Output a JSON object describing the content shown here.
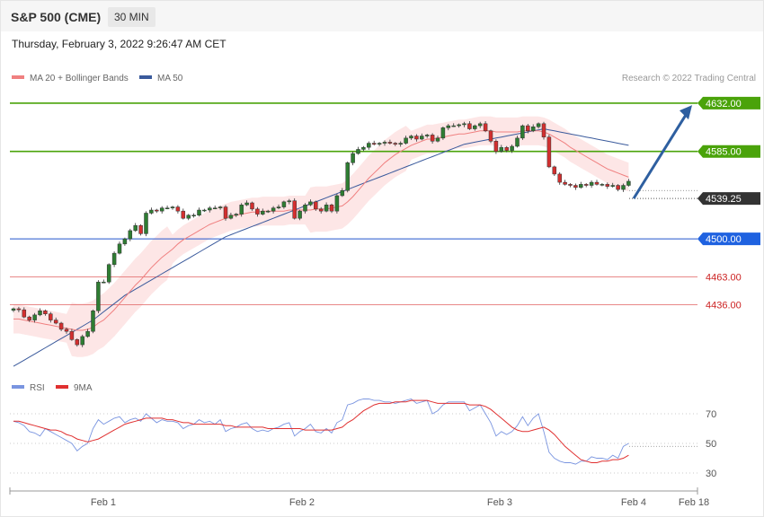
{
  "header": {
    "title": "S&P 500 (CME)",
    "interval": "30 MIN",
    "timestamp": "Thursday, February 3, 2022 9:26:47 AM CET"
  },
  "legend": {
    "ma20": "MA 20 + Bollinger Bands",
    "ma50": "MA 50",
    "credit": "Research © 2022 Trading Central",
    "rsi": "RSI",
    "rsi_ma": "9MA"
  },
  "colors": {
    "bull": "#2e7d32",
    "bear": "#d32f2f",
    "ma20": "#f08080",
    "ma50": "#3a5a9c",
    "band_fill": "#fde2e2",
    "resistance": "#4aa30a",
    "pivot": "#2255cc",
    "support": "#e06060",
    "arrow": "#2e5fa0",
    "current": "#333333",
    "rsi": "#7a95e0",
    "rsi_ma": "#e03030"
  },
  "chart_data": [
    {
      "type": "candlestick",
      "ylim": [
        4370,
        4645
      ],
      "x_ticks": [
        "Feb 1",
        "Feb 2",
        "Feb 3",
        "Feb 4",
        "Feb 18"
      ],
      "price_levels": [
        {
          "label": "4632.00",
          "value": 4632.0,
          "role": "resistance"
        },
        {
          "label": "4585.00",
          "value": 4585.0,
          "role": "resistance"
        },
        {
          "label": "4539.25",
          "value": 4539.25,
          "role": "current"
        },
        {
          "label": "4500.00",
          "value": 4500.0,
          "role": "pivot"
        },
        {
          "label": "4463.00",
          "value": 4463.0,
          "role": "support"
        },
        {
          "label": "4436.00",
          "value": 4436.0,
          "role": "support"
        }
      ],
      "close": [
        4432,
        4431,
        4424,
        4421,
        4426,
        4430,
        4427,
        4421,
        4418,
        4412,
        4410,
        4402,
        4397,
        4405,
        4410,
        4430,
        4458,
        4458,
        4475,
        4486,
        4495,
        4500,
        4508,
        4513,
        4505,
        4525,
        4528,
        4527,
        4530,
        4530,
        4531,
        4527,
        4520,
        4523,
        4523,
        4528,
        4528,
        4530,
        4530,
        4531,
        4520,
        4523,
        4524,
        4533,
        4535,
        4529,
        4524,
        4527,
        4527,
        4530,
        4531,
        4536,
        4537,
        4520,
        4527,
        4533,
        4536,
        4529,
        4527,
        4533,
        4527,
        4542,
        4547,
        4574,
        4583,
        4587,
        4589,
        4593,
        4592,
        4593,
        4594,
        4593,
        4592,
        4593,
        4598,
        4600,
        4597,
        4600,
        4601,
        4595,
        4598,
        4608,
        4610,
        4610,
        4611,
        4612,
        4607,
        4610,
        4612,
        4605,
        4595,
        4585,
        4589,
        4586,
        4590,
        4598,
        4610,
        4605,
        4609,
        4612,
        4599,
        4570,
        4563,
        4555,
        4553,
        4552,
        4550,
        4553,
        4552,
        4555,
        4553,
        4553,
        4551,
        4552,
        4548,
        4552,
        4556
      ],
      "ma20": [
        4422,
        4422,
        4421,
        4420,
        4419,
        4418,
        4417,
        4416,
        4415,
        4414,
        4413,
        4412,
        4411,
        4411,
        4412,
        4414,
        4418,
        4421,
        4426,
        4431,
        4437,
        4443,
        4449,
        4455,
        4460,
        4466,
        4472,
        4477,
        4482,
        4486,
        4490,
        4495,
        4499,
        4502,
        4505,
        4508,
        4511,
        4514,
        4516,
        4518,
        4520,
        4522,
        4523,
        4524,
        4525,
        4526,
        4526,
        4527,
        4527,
        4527,
        4527,
        4527,
        4528,
        4528,
        4528,
        4528,
        4528,
        4529,
        4529,
        4529,
        4530,
        4531,
        4532,
        4536,
        4541,
        4547,
        4553,
        4559,
        4564,
        4569,
        4574,
        4578,
        4582,
        4585,
        4588,
        4591,
        4593,
        4595,
        4597,
        4597,
        4598,
        4599,
        4600,
        4601,
        4602,
        4602,
        4603,
        4604,
        4605,
        4605,
        4605,
        4604,
        4604,
        4604,
        4604,
        4604,
        4605,
        4605,
        4605,
        4605,
        4604,
        4602,
        4599,
        4596,
        4593,
        4589,
        4586,
        4583,
        4580,
        4577,
        4574,
        4571,
        4568,
        4566,
        4564,
        4562,
        4560
      ],
      "ma50": [
        4376,
        4379,
        4382,
        4385,
        4388,
        4391,
        4394,
        4397,
        4400,
        4403,
        4406,
        4409,
        4412,
        4415,
        4418,
        4421,
        4425,
        4429,
        4433,
        4437,
        4441,
        4445,
        4448,
        4451,
        4454,
        4457,
        4460,
        4463,
        4466,
        4469,
        4472,
        4475,
        4478,
        4481,
        4484,
        4487,
        4490,
        4493,
        4496,
        4499,
        4502,
        4504,
        4506,
        4508,
        4510,
        4512,
        4514,
        4516,
        4518,
        4520,
        4522,
        4524,
        4526,
        4528,
        4530,
        4532,
        4534,
        4536,
        4538,
        4540,
        4542,
        4544,
        4546,
        4548,
        4550,
        4552,
        4554,
        4556,
        4558,
        4560,
        4562,
        4564,
        4566,
        4568,
        4570,
        4572,
        4574,
        4576,
        4578,
        4580,
        4582,
        4584,
        4586,
        4588,
        4590,
        4592,
        4593,
        4594,
        4595,
        4596,
        4597,
        4598,
        4599,
        4600,
        4601,
        4602,
        4603,
        4604,
        4605,
        4606,
        4607,
        4606,
        4605,
        4604,
        4603,
        4602,
        4601,
        4600,
        4599,
        4598,
        4597,
        4596,
        4595,
        4594,
        4593,
        4592,
        4591
      ]
    },
    {
      "type": "line",
      "ylim": [
        20,
        80
      ],
      "y_ticks": [
        70,
        50,
        30
      ],
      "series": [
        {
          "name": "RSI",
          "values": [
            65,
            64,
            62,
            58,
            57,
            55,
            60,
            58,
            56,
            54,
            52,
            50,
            45,
            48,
            50,
            60,
            66,
            63,
            65,
            67,
            68,
            64,
            66,
            67,
            65,
            70,
            67,
            64,
            66,
            65,
            65,
            64,
            60,
            62,
            63,
            66,
            64,
            65,
            63,
            66,
            58,
            60,
            61,
            63,
            64,
            60,
            58,
            59,
            58,
            60,
            61,
            63,
            64,
            55,
            58,
            60,
            63,
            58,
            57,
            60,
            57,
            64,
            66,
            76,
            77,
            79,
            80,
            80,
            79,
            79,
            78,
            78,
            77,
            78,
            79,
            80,
            77,
            78,
            79,
            70,
            72,
            76,
            78,
            78,
            78,
            78,
            72,
            74,
            76,
            70,
            64,
            55,
            58,
            56,
            58,
            62,
            68,
            62,
            67,
            70,
            58,
            44,
            40,
            38,
            37,
            37,
            36,
            38,
            38,
            41,
            40,
            40,
            39,
            42,
            40,
            48,
            50
          ]
        },
        {
          "name": "9MA",
          "values": [
            65,
            65,
            64,
            63,
            62,
            61,
            60,
            59,
            59,
            58,
            56,
            55,
            53,
            52,
            51,
            52,
            53,
            55,
            57,
            59,
            61,
            63,
            64,
            65,
            66,
            67,
            67,
            67,
            67,
            66,
            66,
            65,
            64,
            64,
            63,
            63,
            63,
            63,
            63,
            63,
            62,
            62,
            61,
            61,
            61,
            61,
            61,
            61,
            60,
            60,
            60,
            60,
            60,
            60,
            60,
            59,
            59,
            59,
            59,
            59,
            59,
            60,
            61,
            64,
            66,
            69,
            72,
            74,
            76,
            77,
            77,
            77,
            78,
            78,
            78,
            79,
            79,
            79,
            79,
            78,
            77,
            77,
            77,
            77,
            77,
            77,
            76,
            76,
            76,
            75,
            73,
            70,
            67,
            64,
            61,
            59,
            58,
            58,
            59,
            60,
            61,
            59,
            56,
            52,
            48,
            45,
            42,
            39,
            38,
            37,
            37,
            38,
            38,
            39,
            39,
            40,
            42
          ]
        }
      ]
    }
  ]
}
